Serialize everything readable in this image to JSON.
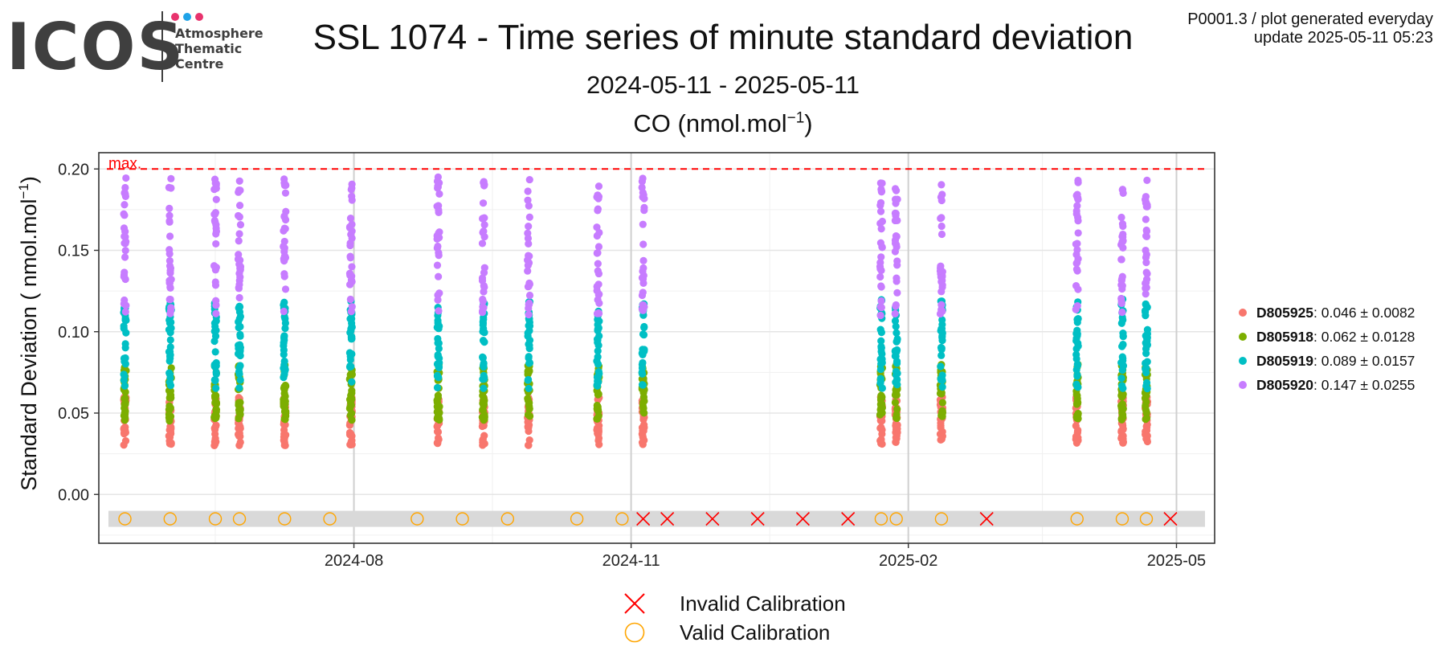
{
  "header": {
    "logo": {
      "text": "ICOS",
      "sub_lines": [
        "Atmosphere",
        "Thematic",
        "Centre"
      ],
      "dot_colors": [
        "#e8336d",
        "#1fa3e8",
        "#e8336d"
      ]
    },
    "title": "SSL 1074 - Time series of minute standard deviation",
    "subtitle": "2024-05-11 - 2025-05-11",
    "gas_label": "CO (nmol.mol",
    "gas_exp": "−1",
    "gas_close": ")",
    "info_line1": "P0001.3 / plot generated everyday",
    "info_line2": "update  2025-05-11 05:23"
  },
  "chart_data": {
    "type": "scatter",
    "ylabel": "Standard Deviation ( nmol.mol",
    "ylabel_exp": "−1",
    "ylabel_close": ")",
    "xlim": [
      "2024-05-11",
      "2025-05-11"
    ],
    "ylim": [
      -0.03,
      0.21
    ],
    "x_ticks": [
      "2024-08-01",
      "2024-11-01",
      "2025-02-01",
      "2025-05-01"
    ],
    "x_tick_labels": [
      "2024-08",
      "2024-11",
      "2025-02",
      "2025-05"
    ],
    "y_ticks": [
      0.0,
      0.05,
      0.1,
      0.15,
      0.2
    ],
    "y_tick_labels": [
      "0.00",
      "0.05",
      "0.10",
      "0.15",
      "0.20"
    ],
    "grid": true,
    "max_line": {
      "value": 0.2,
      "label": "max.",
      "color": "#ff0000"
    },
    "series": [
      {
        "name": "D805925",
        "stats": ": 0.046 ± 0.0082",
        "color": "#f8766d"
      },
      {
        "name": "D805918",
        "stats": ": 0.062 ± 0.0128",
        "color": "#7cae00"
      },
      {
        "name": "D805919",
        "stats": ": 0.089 ± 0.0157",
        "color": "#00bfc4"
      },
      {
        "name": "D805920",
        "stats": ": 0.147 ± 0.0255",
        "color": "#c77cff"
      }
    ],
    "measurement_dates": [
      "2024-05-17",
      "2024-06-01",
      "2024-06-16",
      "2024-06-24",
      "2024-07-09",
      "2024-07-31",
      "2024-08-29",
      "2024-09-13",
      "2024-09-28",
      "2024-10-21",
      "2024-11-05",
      "2025-01-23",
      "2025-01-28",
      "2025-02-12",
      "2025-03-29",
      "2025-04-13",
      "2025-04-21"
    ],
    "calibrations": {
      "y": -0.015,
      "band_color": "#d9d9d9",
      "valid_color": "#ffa500",
      "invalid_color": "#ff0000",
      "valid": [
        "2024-05-17",
        "2024-06-01",
        "2024-06-16",
        "2024-06-24",
        "2024-07-09",
        "2024-07-24",
        "2024-08-22",
        "2024-09-06",
        "2024-09-21",
        "2024-10-14",
        "2024-10-29",
        "2025-01-23",
        "2025-01-28",
        "2025-02-12",
        "2025-03-29",
        "2025-04-13",
        "2025-04-21"
      ],
      "invalid": [
        "2024-11-05",
        "2024-11-13",
        "2024-11-28",
        "2024-12-13",
        "2024-12-28",
        "2025-01-12",
        "2025-02-27",
        "2025-04-29"
      ]
    }
  },
  "calibration_legend": [
    {
      "label": "Invalid Calibration",
      "symbol": "cross",
      "color": "#ff0000"
    },
    {
      "label": "Valid Calibration",
      "symbol": "circle",
      "color": "#ffa500"
    }
  ]
}
